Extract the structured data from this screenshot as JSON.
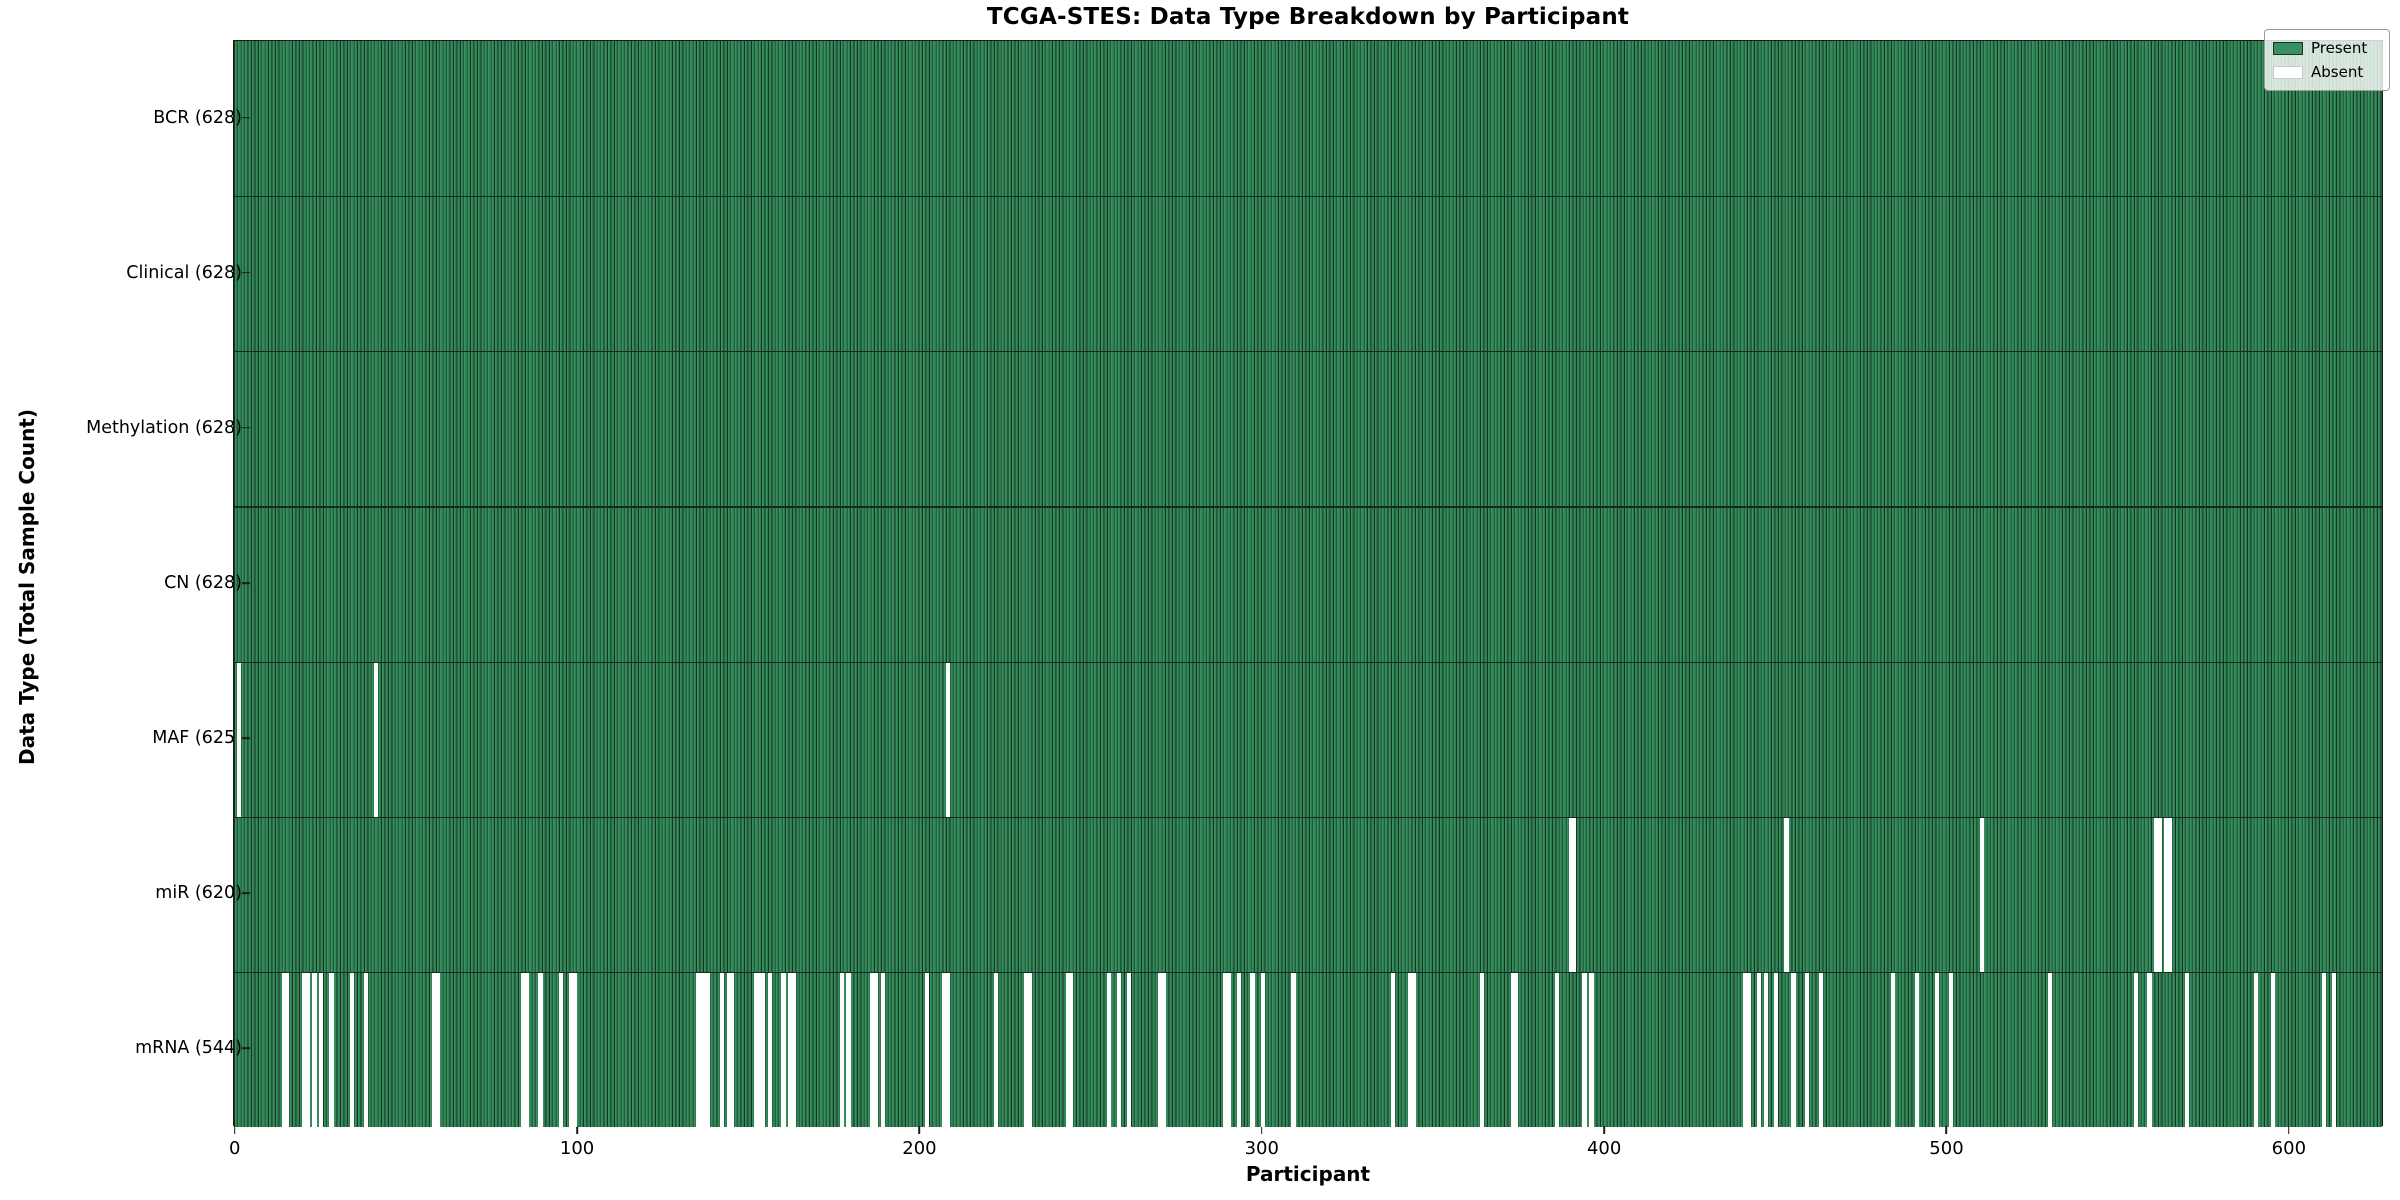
{
  "chart_data": {
    "type": "heatmap",
    "title": "TCGA-STES: Data Type Breakdown by Participant",
    "xlabel": "Participant",
    "ylabel": "Data Type (Total Sample Count)",
    "legend": {
      "present": "Present",
      "absent": "Absent",
      "position": "upper right"
    },
    "colors": {
      "present": "#37905f",
      "present_edge": "#16331f",
      "absent": "#ffffff"
    },
    "n_participants": 628,
    "x_axis": {
      "min": 0,
      "max": 628,
      "ticks": [
        0,
        100,
        200,
        300,
        400,
        500,
        600
      ]
    },
    "rows": [
      {
        "label": "BCR (628)",
        "data_type": "BCR",
        "present_count": 628,
        "absent_participants": []
      },
      {
        "label": "Clinical (628)",
        "data_type": "Clinical",
        "present_count": 628,
        "absent_participants": []
      },
      {
        "label": "Methylation (628)",
        "data_type": "Methylation",
        "present_count": 628,
        "absent_participants": []
      },
      {
        "label": "CN (628)",
        "data_type": "CN",
        "present_count": 628,
        "absent_participants": []
      },
      {
        "label": "MAF (625)",
        "data_type": "MAF",
        "present_count": 625,
        "absent_participants": [
          1,
          41,
          208
        ]
      },
      {
        "label": "miR (620)",
        "data_type": "miR",
        "present_count": 620,
        "absent_participants": [
          390,
          391,
          453,
          510,
          561,
          562,
          564,
          565
        ]
      },
      {
        "label": "mRNA (544)",
        "data_type": "mRNA",
        "present_count": 544,
        "absent_participants": [
          14,
          15,
          20,
          21,
          23,
          25,
          28,
          34,
          38,
          58,
          59,
          84,
          85,
          89,
          95,
          98,
          99,
          135,
          136,
          137,
          138,
          142,
          144,
          145,
          152,
          153,
          154,
          156,
          160,
          162,
          163,
          177,
          179,
          186,
          187,
          189,
          202,
          207,
          208,
          222,
          231,
          232,
          243,
          244,
          255,
          258,
          261,
          270,
          271,
          289,
          290,
          293,
          297,
          300,
          309,
          338,
          343,
          344,
          364,
          373,
          374,
          386,
          394,
          396,
          441,
          442,
          445,
          447,
          450,
          455,
          459,
          463,
          484,
          491,
          497,
          501,
          530,
          555,
          559,
          570,
          590,
          595,
          610,
          613
        ]
      }
    ]
  }
}
